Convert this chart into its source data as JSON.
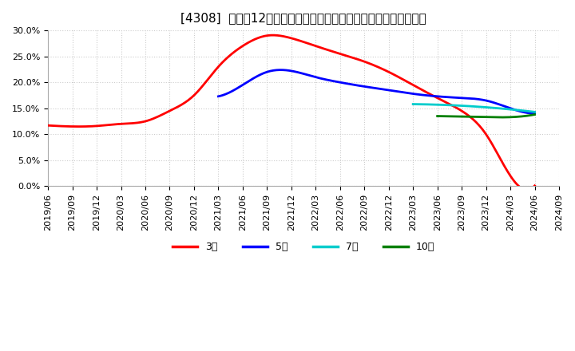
{
  "title": "[4308]  売上高12か月移動合計の対前年同期増減率の平均値の推移",
  "ylabel": "",
  "ylim": [
    0.0,
    0.3
  ],
  "yticks": [
    0.0,
    0.05,
    0.1,
    0.15,
    0.2,
    0.25,
    0.3
  ],
  "background_color": "#ffffff",
  "plot_bg_color": "#ffffff",
  "grid_color": "#cccccc",
  "series": {
    "3year": {
      "label": "3年",
      "color": "#ff0000",
      "dates": [
        "2019-06",
        "2019-09",
        "2019-12",
        "2020-03",
        "2020-06",
        "2020-09",
        "2020-12",
        "2021-03",
        "2021-06",
        "2021-09",
        "2021-12",
        "2022-03",
        "2022-06",
        "2022-09",
        "2022-12",
        "2023-03",
        "2023-06",
        "2023-09",
        "2023-12",
        "2024-03",
        "2024-06"
      ],
      "values": [
        0.117,
        0.115,
        0.116,
        0.12,
        0.125,
        0.145,
        0.175,
        0.23,
        0.27,
        0.29,
        0.285,
        0.27,
        0.255,
        0.24,
        0.22,
        0.195,
        0.17,
        0.145,
        0.1,
        0.02,
        0.001
      ]
    },
    "5year": {
      "label": "5年",
      "color": "#0000ff",
      "dates": [
        "2021-03",
        "2021-06",
        "2021-09",
        "2021-12",
        "2022-03",
        "2022-06",
        "2022-09",
        "2022-12",
        "2023-03",
        "2023-06",
        "2023-09",
        "2023-12",
        "2024-03",
        "2024-06"
      ],
      "values": [
        0.173,
        0.195,
        0.22,
        0.222,
        0.21,
        0.2,
        0.192,
        0.185,
        0.178,
        0.173,
        0.17,
        0.165,
        0.15,
        0.14
      ]
    },
    "7year": {
      "label": "7年",
      "color": "#00cccc",
      "dates": [
        "2023-03",
        "2023-06",
        "2023-09",
        "2023-12",
        "2024-03",
        "2024-06"
      ],
      "values": [
        0.158,
        0.157,
        0.155,
        0.152,
        0.148,
        0.143
      ]
    },
    "10year": {
      "label": "10年",
      "color": "#008000",
      "dates": [
        "2023-06",
        "2023-09",
        "2023-12",
        "2024-03",
        "2024-06"
      ],
      "values": [
        0.135,
        0.134,
        0.133,
        0.133,
        0.138
      ]
    }
  },
  "xtick_dates": [
    "2019-06",
    "2019-09",
    "2019-12",
    "2020-03",
    "2020-06",
    "2020-09",
    "2020-12",
    "2021-03",
    "2021-06",
    "2021-09",
    "2021-12",
    "2022-03",
    "2022-06",
    "2022-09",
    "2022-12",
    "2023-03",
    "2023-06",
    "2023-09",
    "2023-12",
    "2024-03",
    "2024-06",
    "2024-09"
  ],
  "xtick_labels": [
    "2019/06",
    "2019/09",
    "2019/12",
    "2020/03",
    "2020/06",
    "2020/09",
    "2020/12",
    "2021/03",
    "2021/06",
    "2021/09",
    "2021/12",
    "2022/03",
    "2022/06",
    "2022/09",
    "2022/12",
    "2023/03",
    "2023/06",
    "2023/09",
    "2023/12",
    "2024/03",
    "2024/06",
    "2024/09"
  ],
  "legend_entries": [
    "3年",
    "5年",
    "7年",
    "10年"
  ],
  "legend_colors": [
    "#ff0000",
    "#0000ff",
    "#00cccc",
    "#008000"
  ],
  "title_fontsize": 11,
  "tick_fontsize": 8,
  "legend_fontsize": 9
}
